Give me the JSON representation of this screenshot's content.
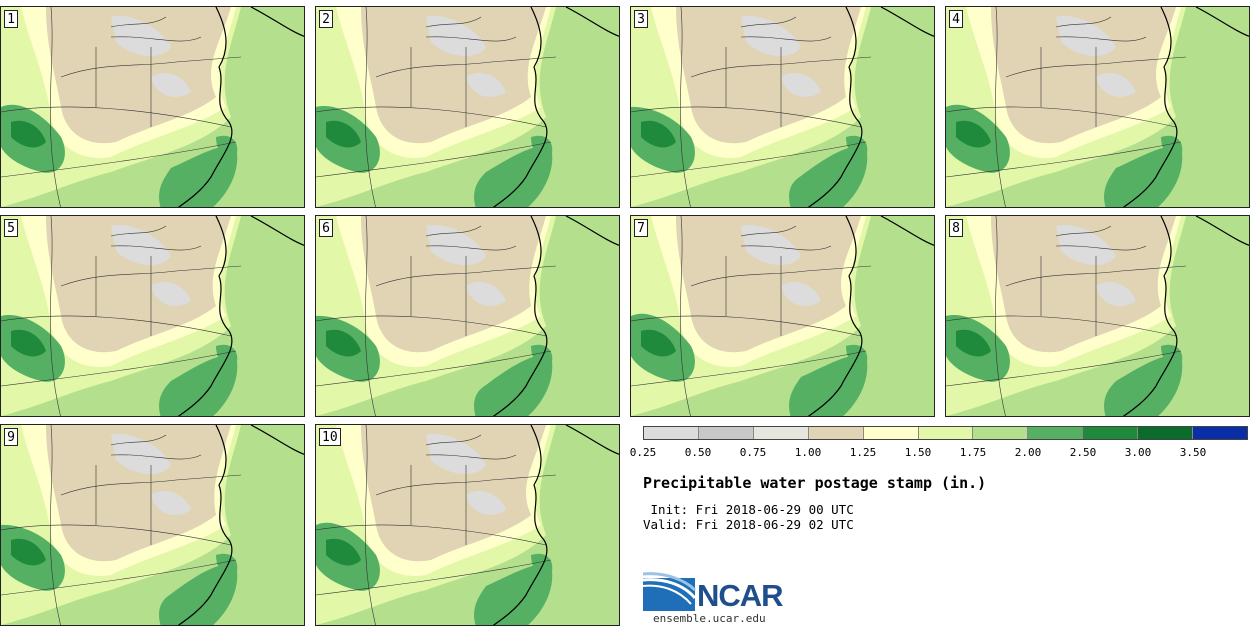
{
  "panels": [
    "1",
    "2",
    "3",
    "4",
    "5",
    "6",
    "7",
    "8",
    "9",
    "10"
  ],
  "colorbar": {
    "colors": [
      "#dcdcdc",
      "#c8c8c8",
      "#e6e6df",
      "#e0d4b4",
      "#ffffcc",
      "#e3f7a8",
      "#b4e08e",
      "#55b063",
      "#1f8a3c",
      "#0b6b2a",
      "#0a2ea6"
    ],
    "labels": [
      "0.25",
      "0.50",
      "0.75",
      "1.00",
      "1.25",
      "1.50",
      "1.75",
      "2.00",
      "2.50",
      "3.00",
      "3.50"
    ]
  },
  "title": "Precipitable water postage stamp (in.)",
  "init": " Init: Fri 2018-06-29 00 UTC",
  "valid": "Valid: Fri 2018-06-29 02 UTC",
  "logo": {
    "text": "NCAR",
    "color": "#1e4f8c",
    "site": "ensemble.ucar.edu"
  },
  "map_colors": {
    "dry": "#e0d4b4",
    "gray": "#dcdcdc",
    "light": "#ffffcc",
    "lime": "#e3f7a8",
    "green": "#b4e08e",
    "dark": "#55b063",
    "darker": "#1f8a3c"
  }
}
